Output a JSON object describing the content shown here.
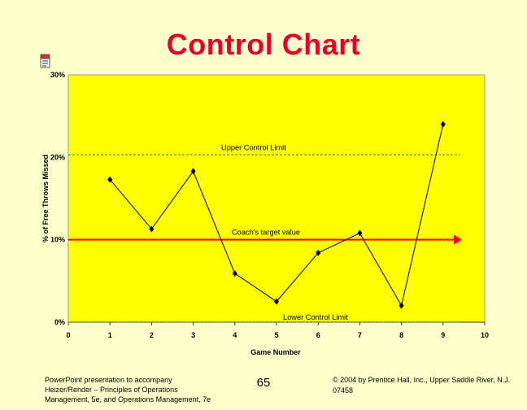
{
  "slide": {
    "title": "Control Chart",
    "page_number": "65",
    "footer_left": "PowerPoint presentation to accompany Heizer/Render – Principles of Operations Management, 5e, and Operations Management, 7e",
    "footer_right": "© 2004 by Prentice Hall, Inc., Upper Saddle River, N.J. 07458",
    "icon": "document-icon"
  },
  "chart_data": {
    "type": "line",
    "xlabel": "Game Number",
    "ylabel": "% of Free Throws Missed",
    "xlim": [
      0,
      10
    ],
    "ylim": [
      0,
      30
    ],
    "x_ticks": [
      0,
      1,
      2,
      3,
      4,
      5,
      6,
      7,
      8,
      9,
      10
    ],
    "x_tick_labels": [
      "0",
      "1",
      "2",
      "3",
      "4",
      "5",
      "6",
      "7",
      "8",
      "9",
      "10"
    ],
    "y_ticks": [
      0,
      10,
      20,
      30
    ],
    "y_tick_labels": [
      "0%",
      "10%",
      "20%",
      "30%"
    ],
    "series": [
      {
        "x": [
          1,
          2,
          3,
          4,
          5,
          6,
          7,
          8,
          9
        ],
        "values": [
          17.3,
          11.3,
          18.3,
          5.9,
          2.5,
          8.4,
          10.8,
          2.0,
          24.0
        ],
        "color": "#000000"
      }
    ],
    "reference_lines": [
      {
        "label": "Upper Control Limit",
        "value": 20.3,
        "color": "#2e8b2e",
        "style": "dashed"
      },
      {
        "label": "Coach's target value",
        "value": 10.0,
        "color": "#ff0000",
        "style": "solid-arrow"
      },
      {
        "label": "Lower Control Limit",
        "value": 0.0,
        "color": "#2e8b2e",
        "style": "dashed"
      }
    ],
    "plot_background": "#ffff00",
    "grid": false
  }
}
